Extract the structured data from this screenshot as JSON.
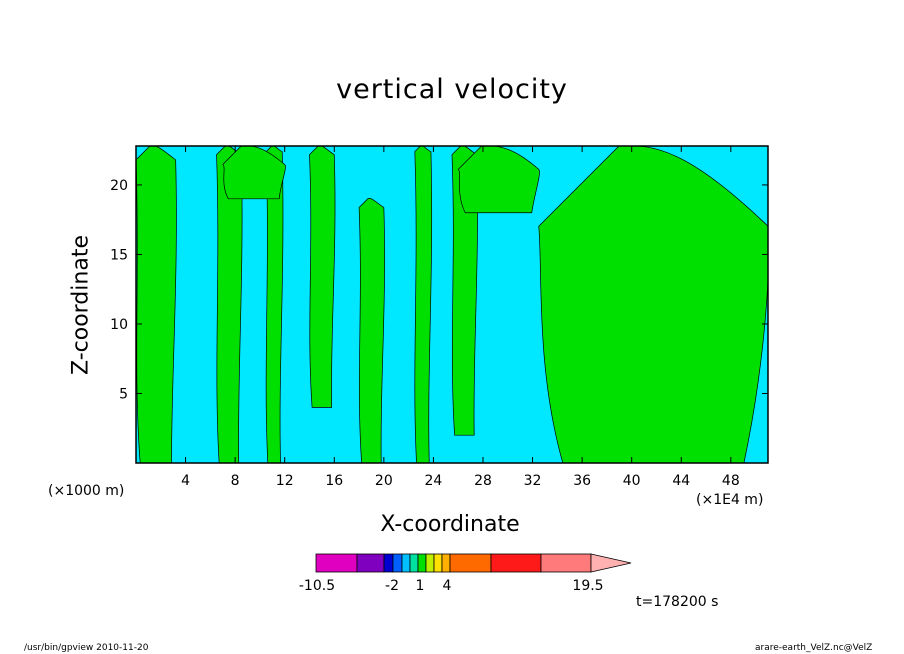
{
  "title": "vertical velocity",
  "footer": {
    "left": "/usr/bin/gpview   2010-11-20",
    "right": "arare-earth_VelZ.nc@VelZ"
  },
  "time_label": "t=178200 s",
  "chart_data": {
    "type": "heatmap",
    "title": "vertical velocity",
    "xlabel": "X-coordinate",
    "ylabel": "Z-coordinate",
    "x_unit": "(×1000 m)",
    "x_scale_label": "(×1E4 m)",
    "xlim": [
      0,
      51
    ],
    "ylim": [
      0,
      22.8
    ],
    "x_ticks": [
      4,
      8,
      12,
      16,
      20,
      24,
      28,
      32,
      36,
      40,
      44,
      48
    ],
    "y_ticks": [
      5,
      10,
      15,
      20
    ],
    "colors": {
      "negative": "#00e8ff",
      "positive": "#00e000",
      "contour": "#000000"
    },
    "shaded_regions": [
      {
        "sign": "positive",
        "x": [
          0,
          3.2
        ],
        "z": [
          0,
          22.8
        ]
      },
      {
        "sign": "positive",
        "x": [
          6.5,
          8.5
        ],
        "z": [
          0,
          22.8
        ]
      },
      {
        "sign": "positive",
        "x": [
          10.5,
          11.8
        ],
        "z": [
          0,
          22.8
        ]
      },
      {
        "sign": "positive",
        "x": [
          14,
          16
        ],
        "z": [
          4,
          22.8
        ]
      },
      {
        "sign": "positive",
        "x": [
          18,
          20
        ],
        "z": [
          0,
          19
        ]
      },
      {
        "sign": "positive",
        "x": [
          22.5,
          23.8
        ],
        "z": [
          0,
          22.8
        ]
      },
      {
        "sign": "positive",
        "x": [
          25.5,
          27.5
        ],
        "z": [
          2,
          22.8
        ]
      },
      {
        "sign": "positive",
        "x": [
          32.5,
          51
        ],
        "z": [
          0,
          22.8
        ]
      },
      {
        "sign": "positive",
        "x": [
          7,
          12
        ],
        "z": [
          19,
          22.8
        ]
      },
      {
        "sign": "positive",
        "x": [
          26,
          32.5
        ],
        "z": [
          18,
          22.8
        ]
      }
    ],
    "colorbar": {
      "labels": [
        "-10.5",
        "-2",
        "1",
        "4",
        "19.5"
      ],
      "colors": [
        "#e000c0",
        "#8000c0",
        "#0000d0",
        "#0060ff",
        "#00c0ff",
        "#00e0a0",
        "#00e000",
        "#c0f000",
        "#ffe000",
        "#ffb000",
        "#ff6a00",
        "#ff1a1a",
        "#ff7a7a",
        "#ffb0b0"
      ]
    }
  }
}
